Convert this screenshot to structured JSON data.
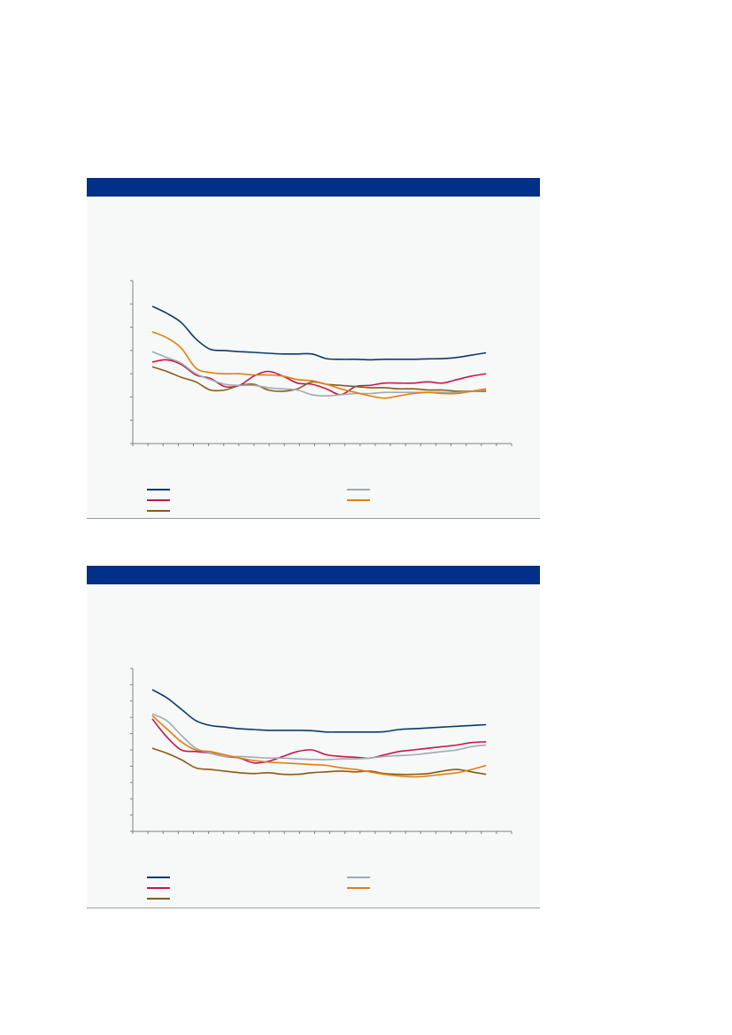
{
  "colors": {
    "header": "#003087",
    "panel_bg": "#f7f8f8",
    "axis": "#7f7f7f"
  },
  "panels": [
    {
      "title": ""
    },
    {
      "title": ""
    }
  ],
  "chart_data": [
    {
      "type": "line",
      "title": "",
      "xlabel": "",
      "ylabel": "",
      "x": [
        1,
        2,
        3,
        4,
        5,
        6,
        7,
        8,
        9,
        10,
        11,
        12,
        13,
        14,
        15,
        16,
        17,
        18,
        19,
        20,
        21,
        22,
        23,
        24
      ],
      "ylim": [
        0,
        7
      ],
      "grid": false,
      "legend": "bottom-left",
      "series": [
        {
          "name": "",
          "color": "#0b3a6e",
          "values": [
            5.9,
            5.6,
            5.2,
            4.5,
            4.05,
            4.0,
            3.95,
            3.92,
            3.88,
            3.85,
            3.85,
            3.85,
            3.65,
            3.62,
            3.62,
            3.6,
            3.62,
            3.62,
            3.62,
            3.64,
            3.65,
            3.7,
            3.8,
            3.9
          ]
        },
        {
          "name": "",
          "color": "#c2184b",
          "values": [
            3.5,
            3.6,
            3.4,
            2.95,
            2.8,
            2.45,
            2.5,
            2.9,
            3.1,
            2.9,
            2.6,
            2.55,
            2.35,
            2.1,
            2.45,
            2.5,
            2.6,
            2.6,
            2.6,
            2.65,
            2.6,
            2.75,
            2.9,
            3.0
          ]
        },
        {
          "name": "",
          "color": "#8b5a14",
          "values": [
            3.3,
            3.1,
            2.85,
            2.65,
            2.3,
            2.3,
            2.5,
            2.55,
            2.3,
            2.25,
            2.35,
            2.65,
            2.55,
            2.5,
            2.45,
            2.4,
            2.4,
            2.35,
            2.35,
            2.3,
            2.3,
            2.25,
            2.25,
            2.25
          ]
        },
        {
          "name": "",
          "color": "#a0a9b3",
          "values": [
            3.95,
            3.7,
            3.45,
            3.0,
            2.75,
            2.55,
            2.5,
            2.5,
            2.4,
            2.35,
            2.3,
            2.1,
            2.05,
            2.1,
            2.15,
            2.15,
            2.2,
            2.2,
            2.2,
            2.2,
            2.2,
            2.2,
            2.25,
            2.3
          ]
        },
        {
          "name": "",
          "color": "#e07f10",
          "values": [
            4.8,
            4.55,
            4.1,
            3.25,
            3.05,
            3.0,
            3.0,
            2.95,
            2.95,
            2.9,
            2.75,
            2.7,
            2.55,
            2.35,
            2.2,
            2.05,
            1.95,
            2.05,
            2.15,
            2.2,
            2.15,
            2.15,
            2.25,
            2.35
          ]
        }
      ]
    },
    {
      "type": "line",
      "title": "",
      "xlabel": "",
      "ylabel": "",
      "x": [
        1,
        2,
        3,
        4,
        5,
        6,
        7,
        8,
        9,
        10,
        11,
        12,
        13,
        14,
        15,
        16,
        17,
        18,
        19,
        20,
        21,
        22,
        23,
        24
      ],
      "ylim": [
        0,
        10
      ],
      "grid": false,
      "legend": "bottom-left",
      "series": [
        {
          "name": "",
          "color": "#0b3a6e",
          "values": [
            8.7,
            8.2,
            7.5,
            6.8,
            6.5,
            6.4,
            6.3,
            6.25,
            6.2,
            6.2,
            6.2,
            6.18,
            6.1,
            6.1,
            6.1,
            6.1,
            6.12,
            6.25,
            6.3,
            6.35,
            6.4,
            6.45,
            6.5,
            6.55
          ]
        },
        {
          "name": "",
          "color": "#c2184b",
          "values": [
            6.9,
            5.8,
            5.0,
            4.9,
            4.8,
            4.6,
            4.5,
            4.2,
            4.3,
            4.6,
            4.9,
            5.0,
            4.7,
            4.6,
            4.55,
            4.5,
            4.7,
            4.9,
            5.0,
            5.1,
            5.2,
            5.3,
            5.45,
            5.5
          ]
        },
        {
          "name": "",
          "color": "#8b5a14",
          "values": [
            5.1,
            4.8,
            4.4,
            3.9,
            3.8,
            3.7,
            3.6,
            3.55,
            3.6,
            3.5,
            3.5,
            3.6,
            3.65,
            3.7,
            3.65,
            3.7,
            3.55,
            3.5,
            3.5,
            3.55,
            3.7,
            3.8,
            3.65,
            3.5
          ]
        },
        {
          "name": "",
          "color": "#a0a9b3",
          "values": [
            7.2,
            6.8,
            5.9,
            5.1,
            4.8,
            4.6,
            4.6,
            4.55,
            4.5,
            4.5,
            4.45,
            4.42,
            4.4,
            4.45,
            4.45,
            4.5,
            4.6,
            4.65,
            4.7,
            4.8,
            4.9,
            5.0,
            5.2,
            5.3
          ]
        },
        {
          "name": "",
          "color": "#e07f10",
          "values": [
            7.1,
            6.3,
            5.5,
            5.0,
            4.9,
            4.7,
            4.5,
            4.35,
            4.25,
            4.2,
            4.15,
            4.1,
            4.05,
            3.9,
            3.8,
            3.65,
            3.5,
            3.4,
            3.35,
            3.4,
            3.5,
            3.6,
            3.8,
            4.05
          ]
        }
      ]
    }
  ]
}
